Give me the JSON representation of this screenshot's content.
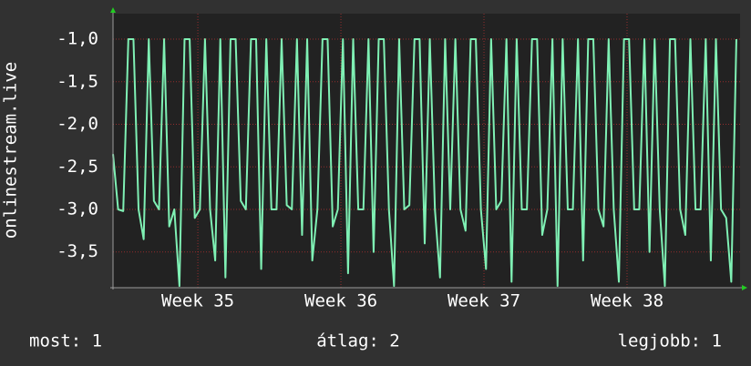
{
  "chart_data": {
    "type": "line",
    "y_label": "onlinestream.live",
    "x": [
      0,
      0.25,
      0.5,
      0.75,
      1,
      1.25,
      1.5,
      1.75,
      2,
      2.25,
      2.5,
      2.75,
      3,
      3.25,
      3.5,
      3.75,
      4,
      4.25,
      4.5,
      4.75,
      5,
      5.25,
      5.5,
      5.75,
      6,
      6.25,
      6.5,
      6.75,
      7,
      7.25,
      7.5,
      7.75,
      8,
      8.25,
      8.5,
      8.75,
      9,
      9.25,
      9.5,
      9.75,
      10,
      10.25,
      10.5,
      10.75,
      11,
      11.25,
      11.5,
      11.75,
      12,
      12.25,
      12.5,
      12.75,
      13,
      13.25,
      13.5,
      13.75,
      14,
      14.25,
      14.5,
      14.75,
      15,
      15.25,
      15.5,
      15.75,
      16,
      16.25,
      16.5,
      16.75,
      17,
      17.25,
      17.5,
      17.75,
      18,
      18.25,
      18.5,
      18.75,
      19,
      19.25,
      19.5,
      19.75,
      20,
      20.25,
      20.5,
      20.75,
      21,
      21.25,
      21.5,
      21.75,
      22,
      22.25,
      22.5,
      22.75,
      23,
      23.25,
      23.5,
      23.75,
      24,
      24.25,
      24.5,
      24.75,
      25,
      25.25,
      25.5,
      25.75,
      26,
      26.25,
      26.5,
      26.75,
      27,
      27.25,
      27.5,
      27.75,
      28,
      28.25,
      28.5,
      28.75,
      29,
      29.25,
      29.5,
      29.75,
      30,
      30.25,
      30.5
    ],
    "series": [
      {
        "name": "onlinestream.live",
        "color": "#7ff0b4",
        "values": [
          -2.35,
          -3.0,
          -3.02,
          -1.0,
          -1.0,
          -3.0,
          -3.35,
          -1.0,
          -2.9,
          -3.0,
          -1.0,
          -3.2,
          -3.0,
          -3.9,
          -1.0,
          -1.0,
          -3.1,
          -3.0,
          -1.0,
          -3.0,
          -3.6,
          -1.0,
          -3.8,
          -1.0,
          -1.0,
          -2.9,
          -3.0,
          -1.0,
          -1.0,
          -3.7,
          -1.0,
          -3.0,
          -3.0,
          -1.0,
          -2.95,
          -3.0,
          -1.0,
          -3.3,
          -1.0,
          -3.6,
          -3.0,
          -1.0,
          -1.0,
          -3.2,
          -3.0,
          -1.0,
          -3.75,
          -1.0,
          -3.0,
          -3.0,
          -1.0,
          -3.5,
          -1.0,
          -1.0,
          -3.0,
          -3.9,
          -1.0,
          -3.0,
          -2.95,
          -1.0,
          -1.0,
          -3.4,
          -1.0,
          -3.0,
          -3.8,
          -1.0,
          -3.0,
          -1.0,
          -3.0,
          -3.25,
          -1.0,
          -1.0,
          -3.0,
          -3.7,
          -1.0,
          -3.0,
          -2.9,
          -1.0,
          -3.85,
          -1.0,
          -3.0,
          -3.0,
          -1.0,
          -1.0,
          -3.3,
          -3.0,
          -1.0,
          -3.9,
          -1.0,
          -3.0,
          -3.0,
          -1.0,
          -3.6,
          -1.0,
          -1.0,
          -3.0,
          -3.2,
          -1.0,
          -3.0,
          -3.85,
          -1.0,
          -1.0,
          -3.0,
          -3.0,
          -1.0,
          -3.5,
          -1.0,
          -3.0,
          -3.9,
          -1.0,
          -1.0,
          -3.0,
          -3.3,
          -1.0,
          -3.0,
          -3.0,
          -1.0,
          -3.6,
          -1.0,
          -3.0,
          -3.1,
          -3.85,
          -1.0
        ]
      }
    ],
    "xlim": [
      0,
      30.68
    ],
    "xticks": [
      {
        "value": 4.15,
        "label": "Week 35"
      },
      {
        "value": 11.15,
        "label": "Week 36"
      },
      {
        "value": 18.15,
        "label": "Week 37"
      },
      {
        "value": 25.15,
        "label": "Week 38"
      }
    ],
    "ylim": [
      -3.92,
      -0.7
    ],
    "yticks": [
      {
        "value": -3.5,
        "label": "-3,5"
      },
      {
        "value": -3.0,
        "label": "-3,0"
      },
      {
        "value": -2.5,
        "label": "-2,5"
      },
      {
        "value": -2.0,
        "label": "-2,0"
      },
      {
        "value": -1.5,
        "label": "-1,5"
      },
      {
        "value": -1.0,
        "label": "-1,0"
      }
    ],
    "grid": true,
    "footer": [
      "most: 1",
      "átlag: 2",
      "legjobb: 1"
    ]
  }
}
